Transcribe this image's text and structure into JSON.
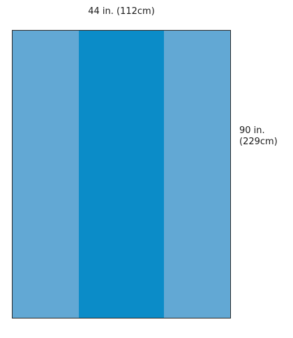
{
  "dimensions": {
    "width_label": "44 in. (112cm)",
    "height_label_line1": "90 in.",
    "height_label_line2": "(229cm)"
  },
  "colors": {
    "side_panel": "#62a8d4",
    "center_panel": "#0b8cc8",
    "outline": "#2b2b2b"
  }
}
